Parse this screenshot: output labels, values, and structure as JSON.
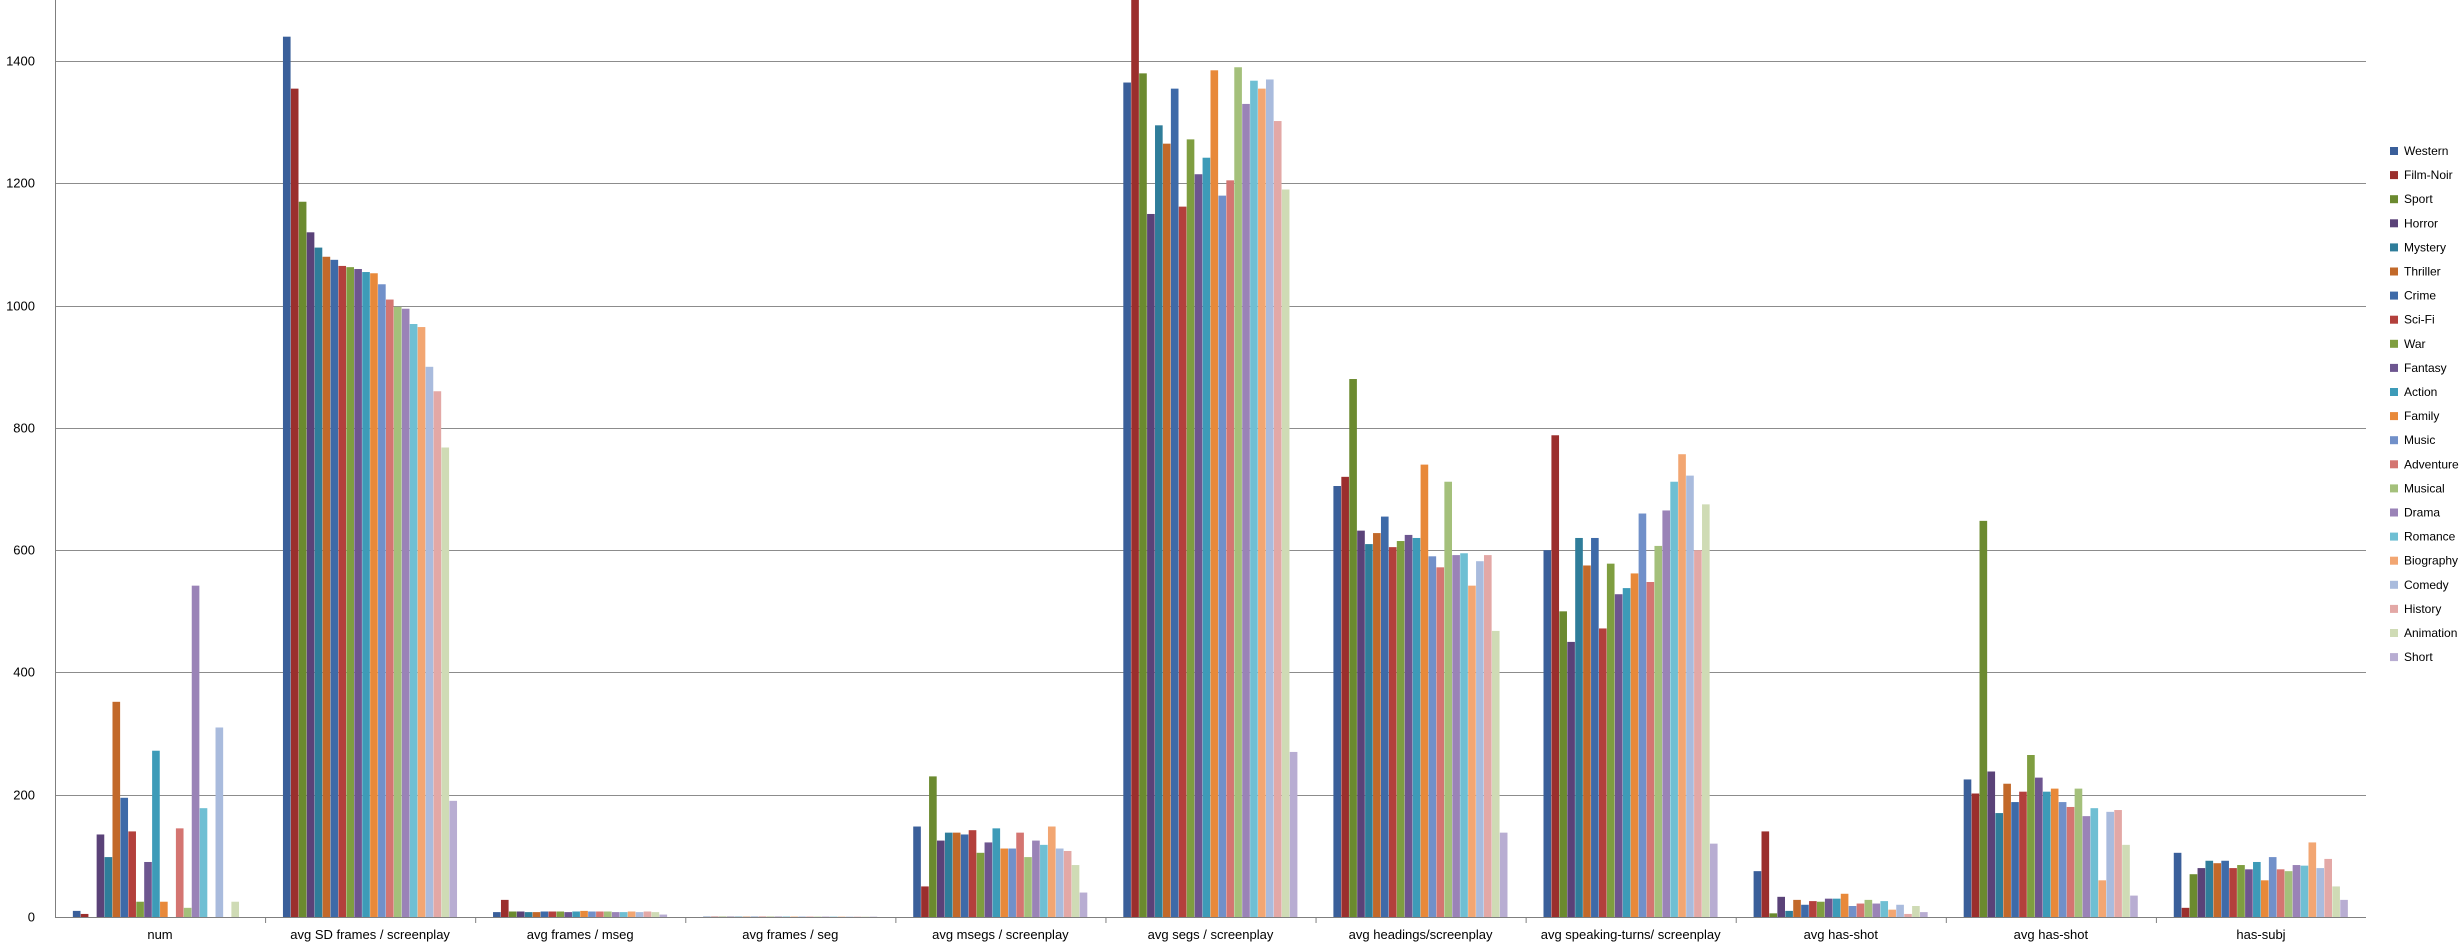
{
  "chart_data": {
    "type": "bar",
    "title": "",
    "xlabel": "",
    "ylabel": "",
    "ylim": [
      0,
      1500
    ],
    "ytick_step": 200,
    "grid": true,
    "legend_position": "right",
    "categories": [
      "num",
      "avg SD frames / screenplay",
      "avg frames / mseg",
      "avg frames / seg",
      "avg msegs / screenplay",
      "avg segs / screenplay",
      "avg headings/screenplay",
      "avg speaking-turns/ screenplay",
      "avg has-shot",
      "avg has-shot",
      "has-subj"
    ],
    "series": [
      {
        "name": "Western",
        "color": "#3a5f9a",
        "values": [
          10,
          1440,
          8,
          0.5,
          148,
          1365,
          705,
          600,
          75,
          225,
          105
        ]
      },
      {
        "name": "Film-Noir",
        "color": "#9b2f2d",
        "values": [
          5,
          1355,
          28,
          0.5,
          50,
          1535,
          720,
          788,
          140,
          202,
          15
        ]
      },
      {
        "name": "Sport",
        "color": "#6b8a2f",
        "values": [
          0,
          1170,
          9,
          0.5,
          230,
          1380,
          880,
          500,
          6,
          648,
          70
        ]
      },
      {
        "name": "Horror",
        "color": "#5a4278",
        "values": [
          135,
          1120,
          9,
          0.5,
          125,
          1150,
          632,
          450,
          33,
          238,
          80
        ]
      },
      {
        "name": "Mystery",
        "color": "#2f7d9a",
        "values": [
          98,
          1095,
          8,
          0.5,
          138,
          1295,
          610,
          620,
          10,
          170,
          92
        ]
      },
      {
        "name": "Thriller",
        "color": "#c2692a",
        "values": [
          352,
          1080,
          8,
          0.5,
          138,
          1265,
          628,
          575,
          28,
          218,
          88
        ]
      },
      {
        "name": "Crime",
        "color": "#3e6aa8",
        "values": [
          195,
          1075,
          9,
          0.5,
          135,
          1355,
          655,
          620,
          20,
          188,
          92
        ]
      },
      {
        "name": "Sci-Fi",
        "color": "#b3403c",
        "values": [
          140,
          1065,
          9,
          0.5,
          142,
          1162,
          605,
          472,
          26,
          205,
          80
        ]
      },
      {
        "name": "War",
        "color": "#7f9e40",
        "values": [
          25,
          1063,
          9,
          0.5,
          105,
          1272,
          615,
          578,
          25,
          265,
          85
        ]
      },
      {
        "name": "Fantasy",
        "color": "#6d5690",
        "values": [
          90,
          1060,
          8,
          0.5,
          122,
          1215,
          625,
          528,
          30,
          228,
          78
        ]
      },
      {
        "name": "Action",
        "color": "#3d9bb8",
        "values": [
          272,
          1055,
          9,
          0.5,
          145,
          1242,
          620,
          538,
          30,
          205,
          90
        ]
      },
      {
        "name": "Family",
        "color": "#e8893a",
        "values": [
          25,
          1053,
          10,
          0.5,
          112,
          1385,
          740,
          562,
          38,
          210,
          60
        ]
      },
      {
        "name": "Music",
        "color": "#7190c9",
        "values": [
          0,
          1035,
          9,
          0.5,
          112,
          1180,
          590,
          660,
          18,
          188,
          98
        ]
      },
      {
        "name": "Adventure",
        "color": "#d47571",
        "values": [
          145,
          1010,
          9,
          0.5,
          138,
          1205,
          572,
          548,
          22,
          180,
          78
        ]
      },
      {
        "name": "Musical",
        "color": "#a4c07b",
        "values": [
          15,
          998,
          9,
          0.5,
          98,
          1390,
          712,
          607,
          28,
          210,
          75
        ]
      },
      {
        "name": "Drama",
        "color": "#9a83b7",
        "values": [
          542,
          995,
          8,
          0.5,
          125,
          1330,
          592,
          665,
          22,
          165,
          85
        ]
      },
      {
        "name": "Romance",
        "color": "#6fbfd3",
        "values": [
          178,
          970,
          8,
          0.5,
          118,
          1368,
          595,
          712,
          26,
          178,
          84
        ]
      },
      {
        "name": "Biography",
        "color": "#f2a672",
        "values": [
          0,
          965,
          9,
          0.5,
          148,
          1355,
          542,
          757,
          12,
          60,
          122
        ]
      },
      {
        "name": "Comedy",
        "color": "#a9bbdd",
        "values": [
          310,
          900,
          8,
          0.5,
          112,
          1370,
          582,
          722,
          20,
          172,
          80
        ]
      },
      {
        "name": "History",
        "color": "#e3a8a6",
        "values": [
          0,
          860,
          9,
          0.5,
          108,
          1302,
          592,
          600,
          5,
          175,
          95
        ]
      },
      {
        "name": "Animation",
        "color": "#cfdbb5",
        "values": [
          25,
          768,
          8,
          0.5,
          85,
          1190,
          468,
          675,
          18,
          118,
          50
        ]
      },
      {
        "name": "Short",
        "color": "#b8add2",
        "values": [
          0,
          190,
          4,
          0.5,
          40,
          270,
          138,
          120,
          8,
          35,
          28
        ]
      }
    ]
  }
}
